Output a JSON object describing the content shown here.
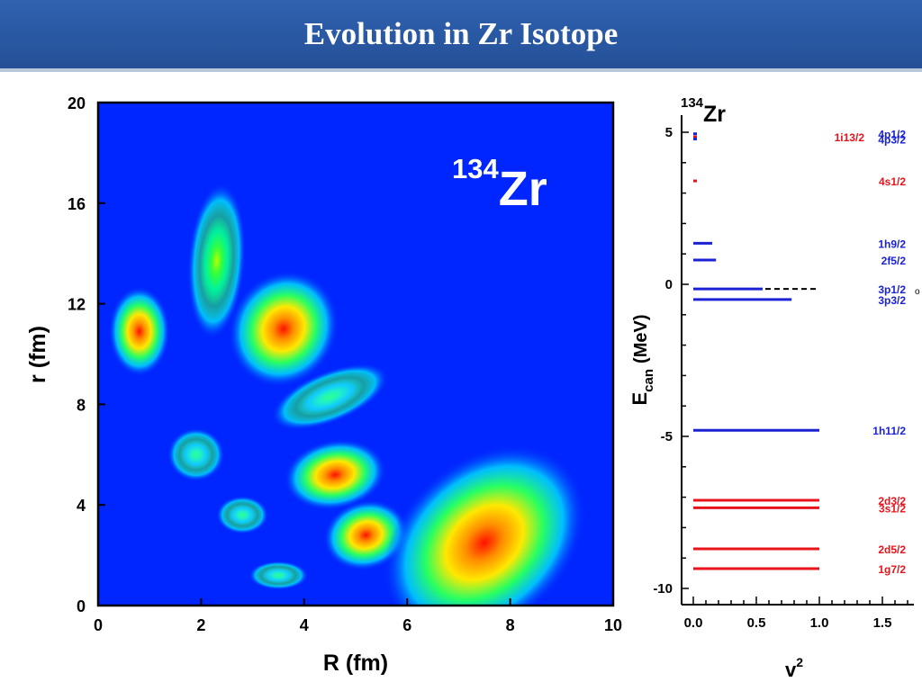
{
  "page": {
    "title": "Evolution in Zr Isotope"
  },
  "colors": {
    "title_bar": "#2b5aa6",
    "map_background": "#0026ff",
    "level_blue": "#1a22d4",
    "level_red": "#e8141c"
  },
  "chart_data": [
    {
      "type": "heatmap",
      "label_mass": "134",
      "label_element": "Zr",
      "xlabel": "R (fm)",
      "ylabel": "r (fm)",
      "xlim": [
        0,
        10
      ],
      "ylim": [
        0,
        20
      ],
      "x_ticks": [
        "0",
        "2",
        "4",
        "6",
        "8",
        "10"
      ],
      "y_ticks": [
        "0",
        "4",
        "8",
        "12",
        "16",
        "20"
      ],
      "grid": false,
      "peaks": [
        {
          "R": 0.8,
          "r": 10.9,
          "intensity": 0.95
        },
        {
          "R": 2.3,
          "r": 13.7,
          "intensity": 0.7
        },
        {
          "R": 3.6,
          "r": 11.0,
          "intensity": 0.98
        },
        {
          "R": 4.5,
          "r": 8.3,
          "intensity": 0.55
        },
        {
          "R": 1.9,
          "r": 6.0,
          "intensity": 0.45
        },
        {
          "R": 4.6,
          "r": 5.2,
          "intensity": 0.97
        },
        {
          "R": 2.8,
          "r": 3.6,
          "intensity": 0.38
        },
        {
          "R": 5.2,
          "r": 2.8,
          "intensity": 0.95
        },
        {
          "R": 3.5,
          "r": 1.2,
          "intensity": 0.3
        },
        {
          "R": 7.5,
          "r": 2.5,
          "intensity": 1.0
        }
      ]
    },
    {
      "type": "scatter",
      "label_mass": "134",
      "label_element": "Zr",
      "xlabel": "v",
      "xlabel_sup": "2",
      "ylabel": "E",
      "ylabel_sub": "can",
      "ylabel_unit": "(MeV)",
      "xlim": [
        -0.05,
        1.75
      ],
      "ylim": [
        -10.5,
        5.5
      ],
      "x_ticks": [
        "0.0",
        "0.5",
        "1.0",
        "1.5"
      ],
      "y_ticks": [
        "5",
        "0",
        "-5",
        "-10"
      ],
      "fermi_energy": -0.15,
      "fermi_mark": "o",
      "levels": [
        {
          "label": "4p1/2",
          "E": 4.95,
          "v2": 0.02,
          "color": "blue"
        },
        {
          "label": "1i13/2",
          "E": 4.85,
          "v2": 0.02,
          "color": "red"
        },
        {
          "label": "4p3/2",
          "E": 4.78,
          "v2": 0.02,
          "color": "blue"
        },
        {
          "label": "4s1/2",
          "E": 3.4,
          "v2": 0.02,
          "color": "red"
        },
        {
          "label": "1h9/2",
          "E": 1.35,
          "v2": 0.15,
          "color": "blue"
        },
        {
          "label": "2f5/2",
          "E": 0.8,
          "v2": 0.18,
          "color": "blue"
        },
        {
          "label": "3p1/2",
          "E": -0.15,
          "v2": 0.55,
          "color": "blue"
        },
        {
          "label": "3p3/2",
          "E": -0.5,
          "v2": 0.78,
          "color": "blue"
        },
        {
          "label": "1h11/2",
          "E": -4.8,
          "v2": 1.0,
          "color": "blue"
        },
        {
          "label": "2d3/2",
          "E": -7.1,
          "v2": 1.0,
          "color": "red"
        },
        {
          "label": "3s1/2",
          "E": -7.35,
          "v2": 1.0,
          "color": "red"
        },
        {
          "label": "2d5/2",
          "E": -8.7,
          "v2": 1.0,
          "color": "red"
        },
        {
          "label": "1g7/2",
          "E": -9.35,
          "v2": 1.0,
          "color": "red"
        }
      ]
    }
  ]
}
